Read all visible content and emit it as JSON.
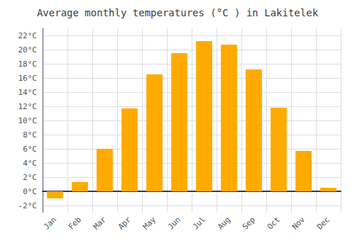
{
  "chart_data": {
    "type": "bar",
    "title": "Average monthly temperatures (°C ) in Lakitelek",
    "categories": [
      "Jan",
      "Feb",
      "Mar",
      "Apr",
      "May",
      "Jun",
      "Jul",
      "Aug",
      "Sep",
      "Oct",
      "Nov",
      "Dec"
    ],
    "values": [
      -1.0,
      1.3,
      6.0,
      11.7,
      16.5,
      19.5,
      21.2,
      20.7,
      17.2,
      11.8,
      5.7,
      0.5
    ],
    "color": "#FFAA00",
    "ylim": [
      -3,
      23
    ],
    "yticks": [
      {
        "value": -2,
        "label": "-2°C"
      },
      {
        "value": 0,
        "label": "0°C"
      },
      {
        "value": 2,
        "label": "2°C"
      },
      {
        "value": 4,
        "label": "4°C"
      },
      {
        "value": 6,
        "label": "6°C"
      },
      {
        "value": 8,
        "label": "8°C"
      },
      {
        "value": 10,
        "label": "10°C"
      },
      {
        "value": 12,
        "label": "12°C"
      },
      {
        "value": 14,
        "label": "14°C"
      },
      {
        "value": 16,
        "label": "16°C"
      },
      {
        "value": 18,
        "label": "18°C"
      },
      {
        "value": 20,
        "label": "20°C"
      },
      {
        "value": 22,
        "label": "22°C"
      }
    ],
    "grid": true
  }
}
